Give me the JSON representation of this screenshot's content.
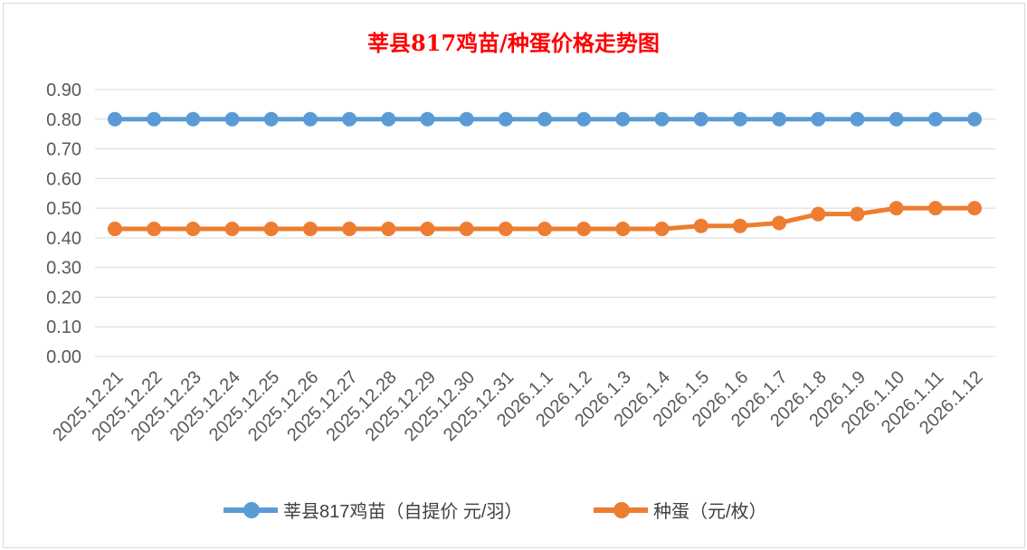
{
  "chart_data": {
    "type": "line",
    "title": "莘县817鸡苗/种蛋价格走势图",
    "categories": [
      "2025.12.21",
      "2025.12.22",
      "2025.12.23",
      "2025.12.24",
      "2025.12.25",
      "2025.12.26",
      "2025.12.27",
      "2025.12.28",
      "2025.12.29",
      "2025.12.30",
      "2025.12.31",
      "2026.1.1",
      "2026.1.2",
      "2026.1.3",
      "2026.1.4",
      "2026.1.5",
      "2026.1.6",
      "2026.1.7",
      "2026.1.8",
      "2026.1.9",
      "2026.1.10",
      "2026.1.11",
      "2026.1.12"
    ],
    "series": [
      {
        "name": "莘县817鸡苗（自提价 元/羽）",
        "color": "#5b9bd5",
        "values": [
          0.8,
          0.8,
          0.8,
          0.8,
          0.8,
          0.8,
          0.8,
          0.8,
          0.8,
          0.8,
          0.8,
          0.8,
          0.8,
          0.8,
          0.8,
          0.8,
          0.8,
          0.8,
          0.8,
          0.8,
          0.8,
          0.8,
          0.8
        ]
      },
      {
        "name": "种蛋（元/枚）",
        "color": "#ed7d31",
        "values": [
          0.43,
          0.43,
          0.43,
          0.43,
          0.43,
          0.43,
          0.43,
          0.43,
          0.43,
          0.43,
          0.43,
          0.43,
          0.43,
          0.43,
          0.43,
          0.44,
          0.44,
          0.45,
          0.48,
          0.48,
          0.5,
          0.5,
          0.5
        ]
      }
    ],
    "yticks": [
      "0.00",
      "0.10",
      "0.20",
      "0.30",
      "0.40",
      "0.50",
      "0.60",
      "0.70",
      "0.80",
      "0.90"
    ],
    "ylim": [
      0,
      0.9
    ],
    "grid": true,
    "legend": "bottom",
    "xlabel": "",
    "ylabel": ""
  }
}
